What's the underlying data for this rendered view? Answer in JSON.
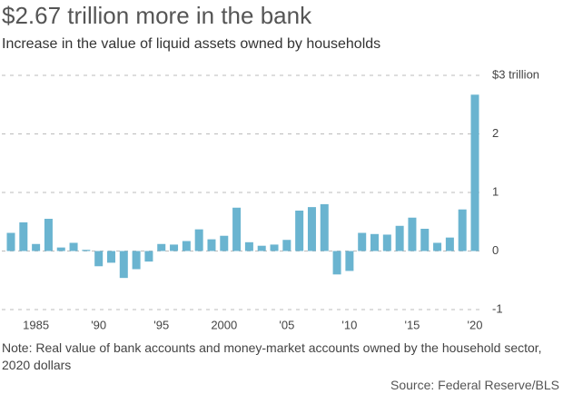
{
  "chart_data": {
    "type": "bar",
    "title": "$2.67 trillion more in the bank",
    "subtitle": "Increase in the value of liquid assets owned by households",
    "note": "Note: Real value of bank accounts and money-market accounts owned by the household sector, 2020 dollars",
    "source": "Source: Federal Reserve/BLS",
    "categories": [
      null,
      null,
      "1985",
      null,
      null,
      null,
      null,
      "'90",
      null,
      null,
      null,
      null,
      "'95",
      null,
      null,
      null,
      null,
      "2000",
      null,
      null,
      null,
      null,
      "'05",
      null,
      null,
      null,
      null,
      "'10",
      null,
      null,
      null,
      null,
      "'15",
      null,
      null,
      null,
      null,
      "'20"
    ],
    "values": [
      0.31,
      0.49,
      0.12,
      0.55,
      0.06,
      0.14,
      0.02,
      -0.26,
      -0.2,
      -0.46,
      -0.31,
      -0.18,
      0.12,
      0.11,
      0.17,
      0.37,
      0.2,
      0.26,
      0.74,
      0.15,
      0.09,
      0.11,
      0.19,
      0.69,
      0.75,
      0.8,
      -0.4,
      -0.34,
      0.31,
      0.29,
      0.28,
      0.43,
      0.57,
      0.38,
      0.14,
      0.23,
      0.71,
      2.67
    ],
    "color": "#6ab4d0",
    "ylim": [
      -1,
      3
    ],
    "yticks": [
      -1,
      0,
      1,
      2,
      {
        "value": 3,
        "label": "$3 trillion"
      }
    ],
    "grid": true
  }
}
